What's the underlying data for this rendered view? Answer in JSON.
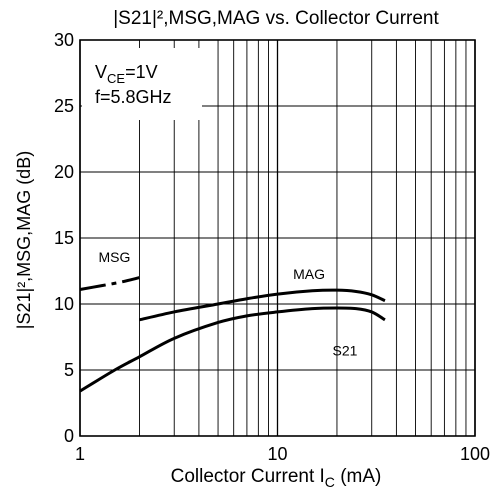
{
  "chart_data": {
    "type": "line",
    "title": "|S21|²,MSG,MAG vs. Collector Current",
    "xlabel": "Collector Current",
    "xlabel_symbol": "I",
    "xlabel_symbol_sub": "C",
    "xlabel_unit": " (mA)",
    "ylabel": "|S21|²,MSG,MAG (dB)",
    "x_scale": "log",
    "xlim": [
      1,
      100
    ],
    "ylim": [
      0,
      30
    ],
    "x_ticks": [
      1,
      10,
      100
    ],
    "x_tick_labels": [
      "1",
      "10",
      "100"
    ],
    "y_ticks": [
      0,
      5,
      10,
      15,
      20,
      25,
      30
    ],
    "y_tick_labels": [
      "0",
      "5",
      "10",
      "15",
      "20",
      "25",
      "30"
    ],
    "grid": true,
    "conditions": {
      "line1_main": "V",
      "line1_sub": "CE",
      "line1_rest": "=1V",
      "line2": "f=5.8GHz"
    },
    "series": [
      {
        "name": "MSG",
        "style": "dashdot",
        "x": [
          1.0,
          1.3,
          1.6,
          2.0
        ],
        "y": [
          11.1,
          11.4,
          11.65,
          12.0
        ]
      },
      {
        "name": "MAG",
        "style": "solid",
        "x": [
          2.0,
          3.0,
          5.0,
          7.0,
          10.0,
          15.0,
          20.0,
          25.0,
          30.0,
          35.0
        ],
        "y": [
          8.8,
          9.4,
          10.0,
          10.4,
          10.75,
          11.0,
          11.05,
          10.95,
          10.7,
          10.25
        ]
      },
      {
        "name": "S21",
        "style": "solid",
        "x": [
          1.0,
          1.5,
          2.0,
          3.0,
          5.0,
          7.0,
          10.0,
          15.0,
          20.0,
          25.0,
          30.0,
          35.0
        ],
        "y": [
          3.4,
          5.0,
          6.0,
          7.4,
          8.6,
          9.1,
          9.4,
          9.65,
          9.7,
          9.65,
          9.4,
          8.8
        ]
      }
    ]
  }
}
